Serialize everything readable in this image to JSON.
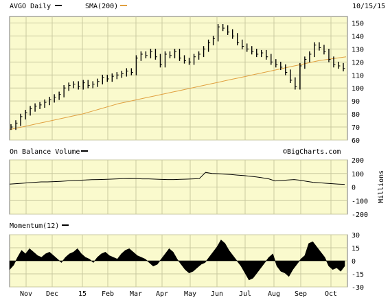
{
  "header": {
    "symbol_label": "AVGO Daily",
    "sma_label": "SMA(200)",
    "date": "10/15/15",
    "price_color": "#000000",
    "sma_color": "#e0a040"
  },
  "obv_panel": {
    "label": "On Balance Volume",
    "credit": "©BigCharts.com",
    "unit": "Millions"
  },
  "momentum_panel": {
    "label": "Momentum(12)"
  },
  "chart_data": [
    {
      "type": "line",
      "title": "AVGO Daily",
      "x_tick_labels": [
        "Nov",
        "Dec",
        "15",
        "Feb",
        "Mar",
        "Apr",
        "May",
        "Jun",
        "Jul",
        "Aug",
        "Sep",
        "Oct"
      ],
      "y_ticks": [
        60,
        70,
        80,
        90,
        100,
        110,
        120,
        130,
        140,
        150
      ],
      "ylim": [
        60,
        155
      ],
      "grid": true,
      "series": [
        {
          "name": "AVGO Daily",
          "style": "ohlc",
          "values": [
            70,
            73,
            78,
            81,
            84,
            86,
            87,
            89,
            91,
            93,
            95,
            100,
            102,
            103,
            101,
            104,
            102,
            103,
            105,
            108,
            107,
            109,
            110,
            111,
            113,
            112,
            123,
            126,
            125,
            128,
            124,
            118,
            126,
            125,
            128,
            123,
            121,
            120,
            124,
            126,
            130,
            135,
            138,
            147,
            146,
            143,
            140,
            135,
            132,
            130,
            128,
            126,
            127,
            124,
            120,
            118,
            116,
            112,
            106,
            101,
            117,
            122,
            126,
            133,
            131,
            128,
            122,
            118,
            117,
            115
          ]
        },
        {
          "name": "SMA(200)",
          "values": [
            68,
            69.5,
            71,
            72.5,
            74,
            75.5,
            77,
            78.5,
            80,
            82,
            84,
            86,
            88,
            89.5,
            91,
            92.5,
            94,
            95.5,
            97,
            98.5,
            100,
            101.5,
            103,
            104.5,
            106,
            107.5,
            109,
            110.5,
            112,
            113.5,
            115,
            116.5,
            118,
            119.5,
            121,
            122,
            123,
            124
          ]
        }
      ]
    },
    {
      "type": "line",
      "title": "On Balance Volume",
      "y_ticks": [
        200,
        100,
        0,
        -100,
        -200
      ],
      "ylim": [
        -200,
        200
      ],
      "grid": true,
      "series": [
        {
          "name": "On Balance Volume",
          "values": [
            22,
            25,
            28,
            32,
            35,
            38,
            38,
            40,
            42,
            45,
            48,
            50,
            52,
            54,
            55,
            56,
            58,
            60,
            62,
            63,
            62,
            60,
            60,
            58,
            56,
            55,
            55,
            57,
            58,
            60,
            62,
            108,
            100,
            98,
            95,
            92,
            88,
            85,
            80,
            75,
            68,
            60,
            45,
            48,
            52,
            55,
            50,
            42,
            35,
            32,
            28,
            25,
            22,
            20
          ]
        }
      ]
    },
    {
      "type": "area",
      "title": "Momentum(12)",
      "y_ticks": [
        30,
        15,
        0,
        -15,
        -30
      ],
      "ylim": [
        -30,
        30
      ],
      "grid": true,
      "series": [
        {
          "name": "Momentum(12)",
          "values": [
            -10,
            -5,
            4,
            12,
            8,
            14,
            10,
            6,
            4,
            8,
            10,
            6,
            2,
            -2,
            4,
            8,
            10,
            14,
            8,
            4,
            2,
            -2,
            4,
            8,
            10,
            6,
            4,
            2,
            8,
            12,
            14,
            10,
            6,
            4,
            2,
            -2,
            -6,
            -4,
            2,
            8,
            14,
            10,
            2,
            -4,
            -10,
            -14,
            -12,
            -8,
            -4,
            -2,
            4,
            10,
            16,
            24,
            20,
            12,
            6,
            0,
            -6,
            -14,
            -22,
            -20,
            -14,
            -8,
            -2,
            4,
            8,
            -6,
            -12,
            -14,
            -18,
            -10,
            -4,
            2,
            6,
            20,
            22,
            16,
            10,
            4,
            -6,
            -10,
            -8,
            -12,
            -6
          ]
        }
      ]
    }
  ]
}
